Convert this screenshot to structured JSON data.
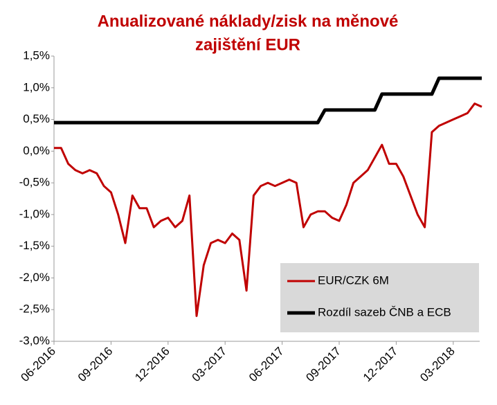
{
  "chart_data": {
    "type": "line",
    "title": "Anualizované náklady/zisk na měnové",
    "subtitle": "zajištění EUR",
    "categories": [
      "06-2016",
      null,
      null,
      null,
      null,
      null,
      null,
      null,
      "09-2016",
      null,
      null,
      null,
      null,
      null,
      null,
      null,
      "12-2016",
      null,
      null,
      null,
      null,
      null,
      null,
      null,
      "03-2017",
      null,
      null,
      null,
      null,
      null,
      null,
      null,
      "06-2017",
      null,
      null,
      null,
      null,
      null,
      null,
      null,
      "09-2017",
      null,
      null,
      null,
      null,
      null,
      null,
      null,
      "12-2017",
      null,
      null,
      null,
      null,
      null,
      null,
      null,
      "03-2018",
      null,
      null,
      null,
      null
    ],
    "series": [
      {
        "name": "EUR/CZK 6M",
        "color": "#c00000",
        "values": [
          0.05,
          0.05,
          -0.2,
          -0.3,
          -0.35,
          -0.3,
          -0.35,
          -0.55,
          -0.65,
          -1.0,
          -1.45,
          -0.7,
          -0.9,
          -0.9,
          -1.2,
          -1.1,
          -1.05,
          -1.2,
          -1.1,
          -0.7,
          -2.6,
          -1.8,
          -1.45,
          -1.4,
          -1.45,
          -1.3,
          -1.4,
          -2.2,
          -0.7,
          -0.55,
          -0.5,
          -0.55,
          -0.5,
          -0.45,
          -0.5,
          -1.2,
          -1.0,
          -0.95,
          -0.95,
          -1.05,
          -1.1,
          -0.85,
          -0.5,
          -0.4,
          -0.3,
          -0.1,
          0.1,
          -0.2,
          -0.2,
          -0.4,
          -0.7,
          -1.0,
          -1.2,
          0.3,
          0.4,
          0.45,
          0.5,
          0.55,
          0.6,
          0.75,
          0.7
        ]
      },
      {
        "name": "Rozdíl sazeb ČNB a ECB",
        "color": "#000000",
        "values": [
          0.45,
          0.45,
          0.45,
          0.45,
          0.45,
          0.45,
          0.45,
          0.45,
          0.45,
          0.45,
          0.45,
          0.45,
          0.45,
          0.45,
          0.45,
          0.45,
          0.45,
          0.45,
          0.45,
          0.45,
          0.45,
          0.45,
          0.45,
          0.45,
          0.45,
          0.45,
          0.45,
          0.45,
          0.45,
          0.45,
          0.45,
          0.45,
          0.45,
          0.45,
          0.45,
          0.45,
          0.45,
          0.45,
          0.65,
          0.65,
          0.65,
          0.65,
          0.65,
          0.65,
          0.65,
          0.65,
          0.9,
          0.9,
          0.9,
          0.9,
          0.9,
          0.9,
          0.9,
          0.9,
          1.15,
          1.15,
          1.15,
          1.15,
          1.15,
          1.15,
          1.15
        ]
      }
    ],
    "ylim": [
      -3.0,
      1.5
    ],
    "yticks": [
      {
        "value": -3.0,
        "label": "-3,0%"
      },
      {
        "value": -2.5,
        "label": "-2,5%"
      },
      {
        "value": -2.0,
        "label": "-2,0%"
      },
      {
        "value": -1.5,
        "label": "-1,5%"
      },
      {
        "value": -1.0,
        "label": "-1,0%"
      },
      {
        "value": -0.5,
        "label": "-0,5%"
      },
      {
        "value": 0.0,
        "label": "0,0%"
      },
      {
        "value": 0.5,
        "label": "0,5%"
      },
      {
        "value": 1.0,
        "label": "1,0%"
      },
      {
        "value": 1.5,
        "label": "1,5%"
      }
    ],
    "grid": false
  }
}
